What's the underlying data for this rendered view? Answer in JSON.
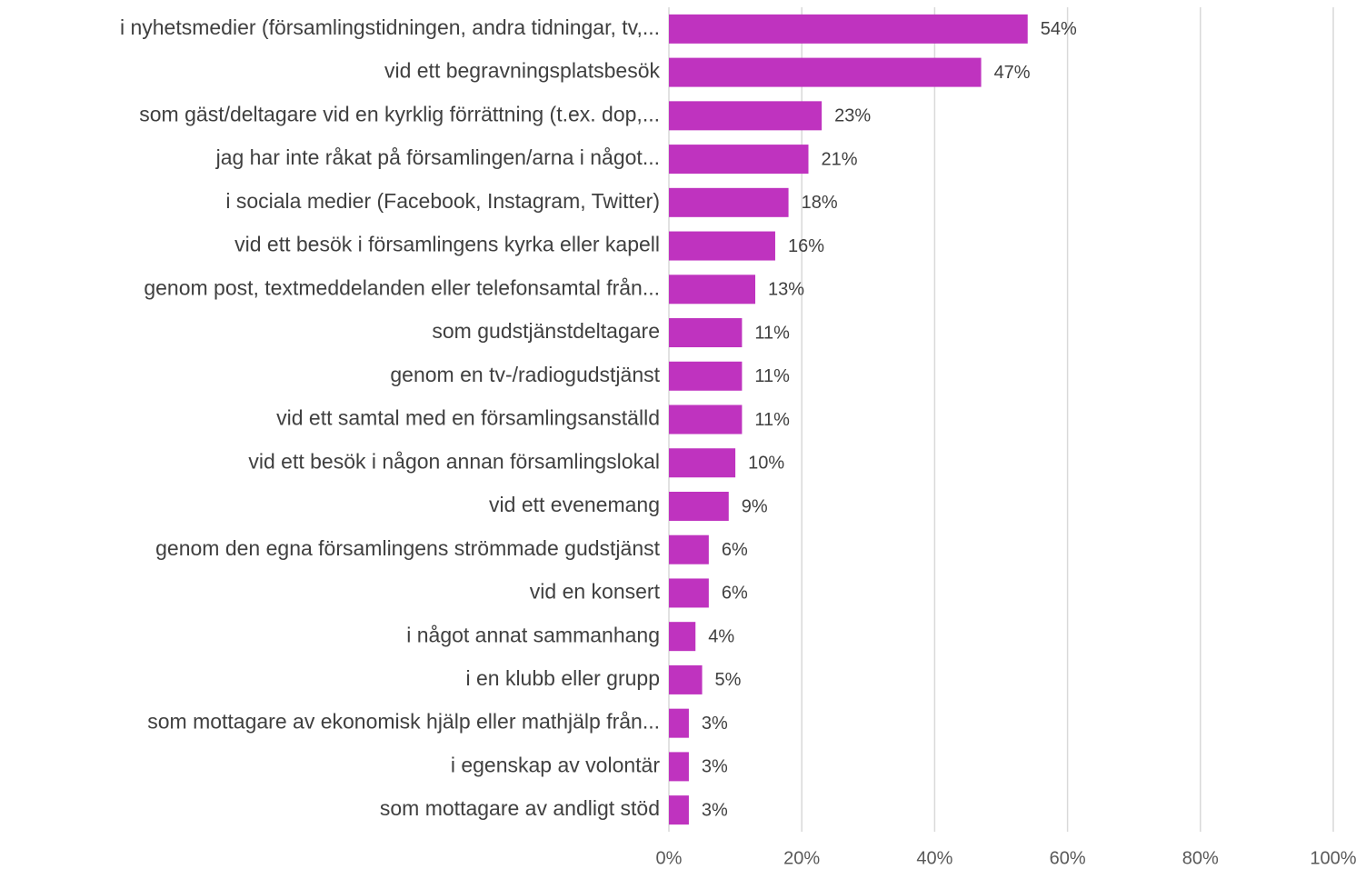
{
  "chart_data": {
    "type": "bar",
    "orientation": "horizontal",
    "categories": [
      "i nyhetsmedier (församlingstidningen, andra tidningar, tv,...",
      "vid ett begravningsplatsbesök",
      "som gäst/deltagare vid en kyrklig förrättning (t.ex. dop,...",
      "jag har inte råkat på församlingen/arna i något...",
      "i sociala medier (Facebook, Instagram, Twitter)",
      "vid ett besök i församlingens kyrka eller kapell",
      "genom post, textmeddelanden eller telefonsamtal från...",
      "som gudstjänstdeltagare",
      "genom en tv-/radiogudstjänst",
      "vid ett samtal med en församlingsanställd",
      "vid ett besök i någon annan församlingslokal",
      "vid ett evenemang",
      "genom den egna församlingens strömmade gudstjänst",
      "vid en konsert",
      "i något annat sammanhang",
      "i en klubb eller grupp",
      "som mottagare av ekonomisk hjälp eller mathjälp från...",
      "i egenskap av volontär",
      "som mottagare av andligt stöd"
    ],
    "values": [
      54,
      47,
      23,
      21,
      18,
      16,
      13,
      11,
      11,
      11,
      10,
      9,
      6,
      6,
      4,
      5,
      3,
      3,
      3
    ],
    "value_labels": [
      "54%",
      "47%",
      "23%",
      "21%",
      "18%",
      "16%",
      "13%",
      "11%",
      "11%",
      "11%",
      "10%",
      "9%",
      "6%",
      "6%",
      "4%",
      "5%",
      "3%",
      "3%",
      "3%"
    ],
    "color": "#bf33bf",
    "xlim": [
      0,
      100
    ],
    "xticks": [
      {
        "value": 0,
        "label": "0%"
      },
      {
        "value": 20,
        "label": "20%"
      },
      {
        "value": 40,
        "label": "40%"
      },
      {
        "value": 60,
        "label": "60%"
      },
      {
        "value": 80,
        "label": "80%"
      },
      {
        "value": 100,
        "label": "100%"
      }
    ],
    "grid": true
  }
}
